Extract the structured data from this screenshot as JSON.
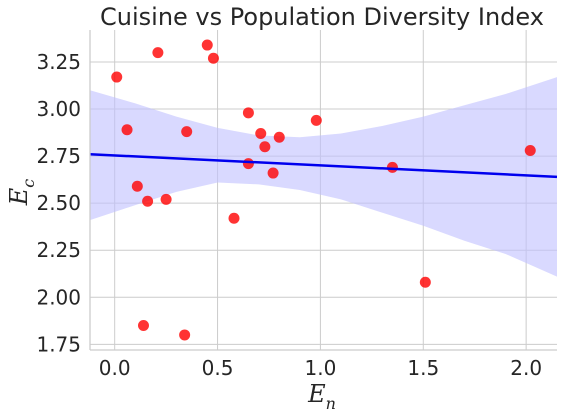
{
  "chart_data": {
    "type": "scatter",
    "title": "Cuisine vs Population Diversity Index",
    "xlabel": "E",
    "xlabel_sub": "n",
    "ylabel": "E",
    "ylabel_sub": "c",
    "xlim": [
      -0.12,
      2.15
    ],
    "ylim": [
      1.72,
      3.42
    ],
    "xticks": [
      0.0,
      0.5,
      1.0,
      1.5,
      2.0
    ],
    "xtick_labels": [
      "0.0",
      "0.5",
      "1.0",
      "1.5",
      "2.0"
    ],
    "yticks": [
      1.75,
      2.0,
      2.25,
      2.5,
      2.75,
      3.0,
      3.25
    ],
    "ytick_labels": [
      "1.75",
      "2.00",
      "2.25",
      "2.50",
      "2.75",
      "3.00",
      "3.25"
    ],
    "grid": true,
    "points": [
      {
        "x": 0.01,
        "y": 3.17
      },
      {
        "x": 0.21,
        "y": 3.3
      },
      {
        "x": 0.45,
        "y": 3.34
      },
      {
        "x": 0.48,
        "y": 3.27
      },
      {
        "x": 0.06,
        "y": 2.89
      },
      {
        "x": 0.35,
        "y": 2.88
      },
      {
        "x": 0.65,
        "y": 2.98
      },
      {
        "x": 0.71,
        "y": 2.87
      },
      {
        "x": 0.8,
        "y": 2.85
      },
      {
        "x": 0.98,
        "y": 2.94
      },
      {
        "x": 0.73,
        "y": 2.8
      },
      {
        "x": 0.65,
        "y": 2.71
      },
      {
        "x": 0.77,
        "y": 2.66
      },
      {
        "x": 0.11,
        "y": 2.59
      },
      {
        "x": 0.16,
        "y": 2.51
      },
      {
        "x": 0.25,
        "y": 2.52
      },
      {
        "x": 0.58,
        "y": 2.42
      },
      {
        "x": 1.35,
        "y": 2.69
      },
      {
        "x": 2.02,
        "y": 2.78
      },
      {
        "x": 1.51,
        "y": 2.08
      },
      {
        "x": 0.14,
        "y": 1.85
      },
      {
        "x": 0.34,
        "y": 1.8
      }
    ],
    "regression": {
      "x": [
        -0.12,
        2.15
      ],
      "y": [
        2.76,
        2.64
      ]
    },
    "confidence_band": {
      "x": [
        -0.12,
        0.1,
        0.3,
        0.5,
        0.7,
        0.9,
        1.1,
        1.3,
        1.5,
        1.7,
        1.9,
        2.15
      ],
      "upper": [
        3.1,
        3.03,
        2.96,
        2.9,
        2.86,
        2.85,
        2.87,
        2.91,
        2.96,
        3.02,
        3.08,
        3.17
      ],
      "lower": [
        2.41,
        2.49,
        2.56,
        2.61,
        2.6,
        2.57,
        2.52,
        2.45,
        2.38,
        2.3,
        2.23,
        2.11
      ]
    },
    "colors": {
      "points": "#ff0000",
      "regression": "#0000ee",
      "band": "#bfbfff",
      "grid": "#cccccc",
      "axis": "#cccccc",
      "text": "#262626"
    }
  }
}
